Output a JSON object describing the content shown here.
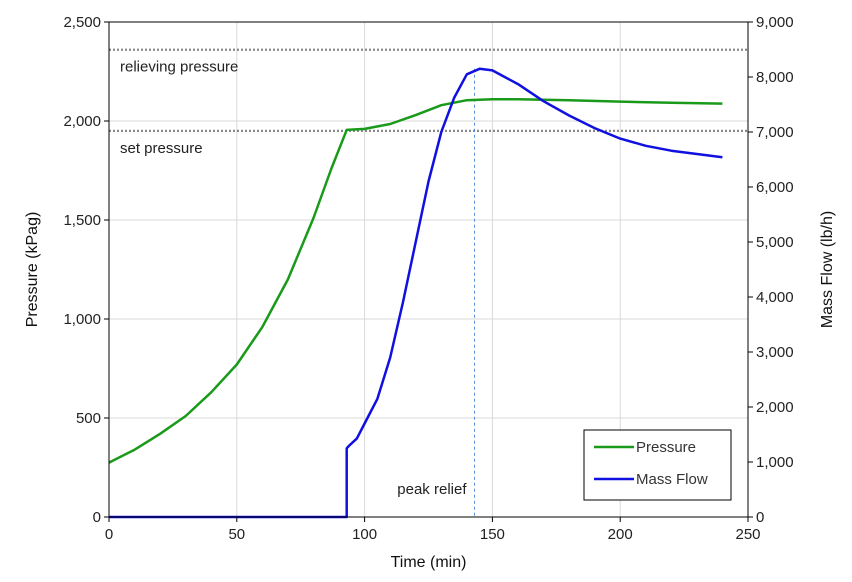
{
  "chart_data": {
    "type": "line",
    "xlabel": "Time (min)",
    "ylabel": "Pressure (kPag)",
    "y2label": "Mass Flow (lb/h)",
    "xlim": [
      0,
      250
    ],
    "ylim": [
      0,
      2500
    ],
    "y2lim": [
      0,
      9000
    ],
    "x_ticks": [
      0,
      50,
      100,
      150,
      200,
      250
    ],
    "y_ticks": [
      0,
      500,
      1000,
      1500,
      2000,
      2500
    ],
    "y2_ticks": [
      0,
      1000,
      2000,
      3000,
      4000,
      5000,
      6000,
      7000,
      8000,
      9000
    ],
    "x_tick_labels": [
      "0",
      "50",
      "100",
      "150",
      "200",
      "250"
    ],
    "y_tick_labels": [
      "0",
      "500",
      "1,000",
      "1,500",
      "2,000",
      "2,500"
    ],
    "y2_tick_labels": [
      "0",
      "1,000",
      "2,000",
      "3,000",
      "4,000",
      "5,000",
      "6,000",
      "7,000",
      "8,000",
      "9,000"
    ],
    "grid": true,
    "legend_position": "bottom-right",
    "series": [
      {
        "name": "Pressure",
        "axis": "left",
        "color": "#1a9a1a",
        "x": [
          0,
          10,
          20,
          30,
          40,
          50,
          60,
          70,
          80,
          87,
          93,
          100,
          110,
          120,
          130,
          140,
          150,
          160,
          180,
          200,
          220,
          240
        ],
        "y": [
          275,
          340,
          420,
          510,
          630,
          770,
          960,
          1200,
          1510,
          1760,
          1955,
          1960,
          1985,
          2030,
          2080,
          2105,
          2110,
          2110,
          2105,
          2098,
          2092,
          2088
        ]
      },
      {
        "name": "Mass Flow",
        "axis": "right",
        "color": "#1010e0",
        "x": [
          0,
          93,
          93,
          94,
          97,
          100,
          105,
          110,
          115,
          120,
          125,
          130,
          135,
          140,
          145,
          150,
          160,
          170,
          180,
          190,
          200,
          210,
          220,
          230,
          240
        ],
        "y": [
          0,
          0,
          1250,
          1300,
          1430,
          1700,
          2150,
          2900,
          3900,
          5000,
          6100,
          7000,
          7620,
          8050,
          8150,
          8120,
          7870,
          7560,
          7300,
          7070,
          6880,
          6750,
          6660,
          6600,
          6540
        ]
      }
    ],
    "reference_lines": [
      {
        "label": "relieving pressure",
        "y": 2360,
        "axis": "left"
      },
      {
        "label": "set pressure",
        "y": 1950,
        "axis": "left"
      }
    ],
    "vertical_marker": {
      "label": "peak relief",
      "x": 143
    }
  }
}
